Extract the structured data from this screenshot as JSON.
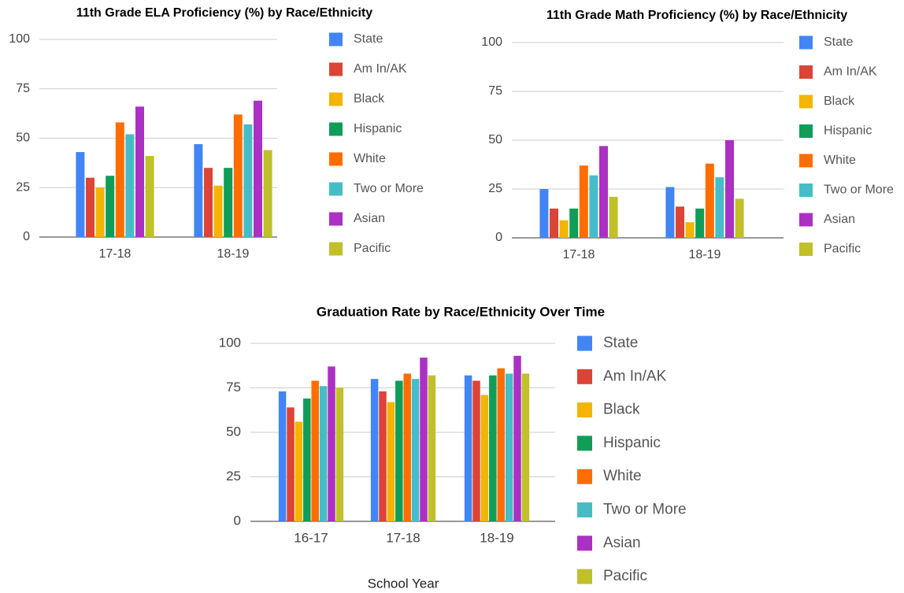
{
  "chart_data": [
    {
      "type": "bar",
      "title": "11th Grade ELA Proficiency (%) by Race/Ethnicity",
      "categories": [
        "17-18",
        "18-19"
      ],
      "series": [
        {
          "name": "State",
          "color": "#4285f4",
          "values": [
            43,
            47
          ]
        },
        {
          "name": "Am In/AK",
          "color": "#db4437",
          "values": [
            30,
            35
          ]
        },
        {
          "name": "Black",
          "color": "#f4b400",
          "values": [
            25,
            26
          ]
        },
        {
          "name": "Hispanic",
          "color": "#0f9d58",
          "values": [
            31,
            35
          ]
        },
        {
          "name": "White",
          "color": "#ff6d00",
          "values": [
            58,
            62
          ]
        },
        {
          "name": "Two or More",
          "color": "#46bdc6",
          "values": [
            52,
            57
          ]
        },
        {
          "name": "Asian",
          "color": "#ab30c4",
          "values": [
            66,
            69
          ]
        },
        {
          "name": "Pacific",
          "color": "#c0c02a",
          "values": [
            41,
            44
          ]
        }
      ],
      "ylim": [
        0,
        100
      ],
      "yticks": [
        0,
        25,
        50,
        75,
        100
      ],
      "grid": true,
      "legend": "right"
    },
    {
      "type": "bar",
      "title": "11th Grade Math Proficiency (%) by Race/Ethnicity",
      "categories": [
        "17-18",
        "18-19"
      ],
      "series": [
        {
          "name": "State",
          "color": "#4285f4",
          "values": [
            25,
            26
          ]
        },
        {
          "name": "Am In/AK",
          "color": "#db4437",
          "values": [
            15,
            16
          ]
        },
        {
          "name": "Black",
          "color": "#f4b400",
          "values": [
            9,
            8
          ]
        },
        {
          "name": "Hispanic",
          "color": "#0f9d58",
          "values": [
            15,
            15
          ]
        },
        {
          "name": "White",
          "color": "#ff6d00",
          "values": [
            37,
            38
          ]
        },
        {
          "name": "Two or More",
          "color": "#46bdc6",
          "values": [
            32,
            31
          ]
        },
        {
          "name": "Asian",
          "color": "#ab30c4",
          "values": [
            47,
            50
          ]
        },
        {
          "name": "Pacific",
          "color": "#c0c02a",
          "values": [
            21,
            20
          ]
        }
      ],
      "ylim": [
        0,
        100
      ],
      "yticks": [
        0,
        25,
        50,
        75,
        100
      ],
      "grid": true,
      "legend": "right"
    },
    {
      "type": "bar",
      "title": "Graduation Rate by Race/Ethnicity Over Time",
      "x_label": "School Year",
      "categories": [
        "16-17",
        "17-18",
        "18-19"
      ],
      "series": [
        {
          "name": "State",
          "color": "#4285f4",
          "values": [
            73,
            80,
            82
          ]
        },
        {
          "name": "Am In/AK",
          "color": "#db4437",
          "values": [
            64,
            73,
            79
          ]
        },
        {
          "name": "Black",
          "color": "#f4b400",
          "values": [
            56,
            67,
            71
          ]
        },
        {
          "name": "Hispanic",
          "color": "#0f9d58",
          "values": [
            69,
            79,
            82
          ]
        },
        {
          "name": "White",
          "color": "#ff6d00",
          "values": [
            79,
            83,
            86
          ]
        },
        {
          "name": "Two or More",
          "color": "#46bdc6",
          "values": [
            76,
            80,
            83
          ]
        },
        {
          "name": "Asian",
          "color": "#ab30c4",
          "values": [
            87,
            92,
            93
          ]
        },
        {
          "name": "Pacific",
          "color": "#c0c02a",
          "values": [
            75,
            82,
            83
          ]
        }
      ],
      "ylim": [
        0,
        100
      ],
      "yticks": [
        0,
        25,
        50,
        75,
        100
      ],
      "grid": true,
      "legend": "right"
    }
  ]
}
